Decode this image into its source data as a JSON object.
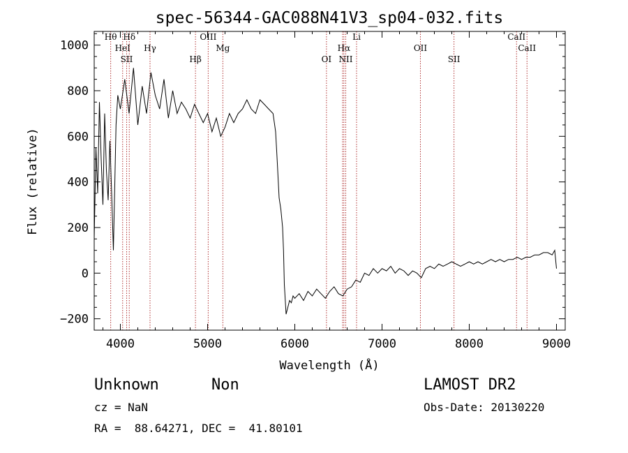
{
  "chart_data": {
    "type": "line",
    "title": "spec-56344-GAC088N41V3_sp04-032.fits",
    "xlabel": "Wavelength (Å)",
    "ylabel": "Flux (relative)",
    "xlim": [
      3700,
      9100
    ],
    "ylim": [
      -250,
      1060
    ],
    "xticks": [
      4000,
      5000,
      6000,
      7000,
      8000,
      9000
    ],
    "yticks": [
      -200,
      0,
      200,
      400,
      600,
      800,
      1000
    ],
    "x_minor_step": 200,
    "y_minor_step": 50,
    "series": [
      {
        "x": [
          3700,
          3720,
          3740,
          3760,
          3780,
          3800,
          3820,
          3840,
          3860,
          3880,
          3900,
          3920,
          3950,
          3970,
          4000,
          4050,
          4100,
          4150,
          4200,
          4250,
          4300,
          4350,
          4400,
          4450,
          4500,
          4550,
          4600,
          4650,
          4700,
          4750,
          4800,
          4850,
          4900,
          4950,
          5000,
          5050,
          5100,
          5150,
          5200,
          5250,
          5300,
          5350,
          5400,
          5450,
          5500,
          5550,
          5600,
          5650,
          5700,
          5750,
          5780,
          5800,
          5820,
          5840,
          5860,
          5870,
          5880,
          5900,
          5920,
          5940,
          5960,
          5980,
          6000,
          6050,
          6100,
          6150,
          6200,
          6250,
          6300,
          6350,
          6400,
          6450,
          6500,
          6550,
          6600,
          6650,
          6700,
          6750,
          6800,
          6850,
          6900,
          6950,
          7000,
          7050,
          7100,
          7150,
          7200,
          7250,
          7300,
          7350,
          7400,
          7450,
          7500,
          7550,
          7600,
          7650,
          7700,
          7750,
          7800,
          7850,
          7900,
          7950,
          8000,
          8050,
          8100,
          8150,
          8200,
          8250,
          8300,
          8350,
          8400,
          8450,
          8500,
          8550,
          8600,
          8650,
          8700,
          8750,
          8800,
          8850,
          8900,
          8950,
          8980,
          9000
        ],
        "values": [
          150,
          550,
          350,
          750,
          500,
          300,
          700,
          450,
          320,
          580,
          350,
          100,
          650,
          780,
          720,
          850,
          700,
          900,
          650,
          820,
          700,
          880,
          780,
          720,
          850,
          680,
          800,
          700,
          750,
          720,
          680,
          740,
          700,
          660,
          700,
          620,
          680,
          600,
          640,
          700,
          660,
          700,
          720,
          760,
          720,
          700,
          760,
          740,
          720,
          700,
          620,
          480,
          330,
          280,
          200,
          100,
          -50,
          -180,
          -150,
          -120,
          -130,
          -100,
          -110,
          -90,
          -120,
          -80,
          -100,
          -70,
          -90,
          -110,
          -80,
          -60,
          -90,
          -100,
          -70,
          -60,
          -30,
          -40,
          0,
          -10,
          20,
          0,
          20,
          10,
          30,
          0,
          20,
          10,
          -10,
          10,
          0,
          -20,
          20,
          30,
          20,
          40,
          30,
          40,
          50,
          40,
          30,
          40,
          50,
          40,
          50,
          40,
          50,
          60,
          50,
          60,
          50,
          60,
          60,
          70,
          60,
          70,
          70,
          80,
          80,
          90,
          90,
          80,
          100,
          20
        ]
      }
    ],
    "lines": [
      {
        "wl": 3889,
        "label": "Hθ"
      },
      {
        "wl": 4026,
        "label": "HeI"
      },
      {
        "wl": 4072,
        "label": "SII"
      },
      {
        "wl": 4102,
        "label": "Hδ"
      },
      {
        "wl": 4340,
        "label": "Hγ"
      },
      {
        "wl": 4861,
        "label": "Hβ"
      },
      {
        "wl": 5007,
        "label": "OIII"
      },
      {
        "wl": 5175,
        "label": "Mg"
      },
      {
        "wl": 6363,
        "label": "OI"
      },
      {
        "wl": 6548,
        "label": ""
      },
      {
        "wl": 6563,
        "label": "Hα"
      },
      {
        "wl": 6584,
        "label": "NII"
      },
      {
        "wl": 6708,
        "label": "Li"
      },
      {
        "wl": 7440,
        "label": "OII"
      },
      {
        "wl": 7825,
        "label": "SII"
      },
      {
        "wl": 8542,
        "label": "CaII"
      },
      {
        "wl": 8662,
        "label": "CaII"
      }
    ]
  },
  "info": {
    "class": "Unknown",
    "subclass": "Non",
    "survey": "LAMOST DR2",
    "cz": "cz = NaN",
    "obs_date": "Obs-Date: 20130220",
    "coords": "RA =  88.64271, DEC =  41.80101"
  },
  "colors": {
    "line_markers": "#b03030",
    "spectrum": "#000000"
  }
}
